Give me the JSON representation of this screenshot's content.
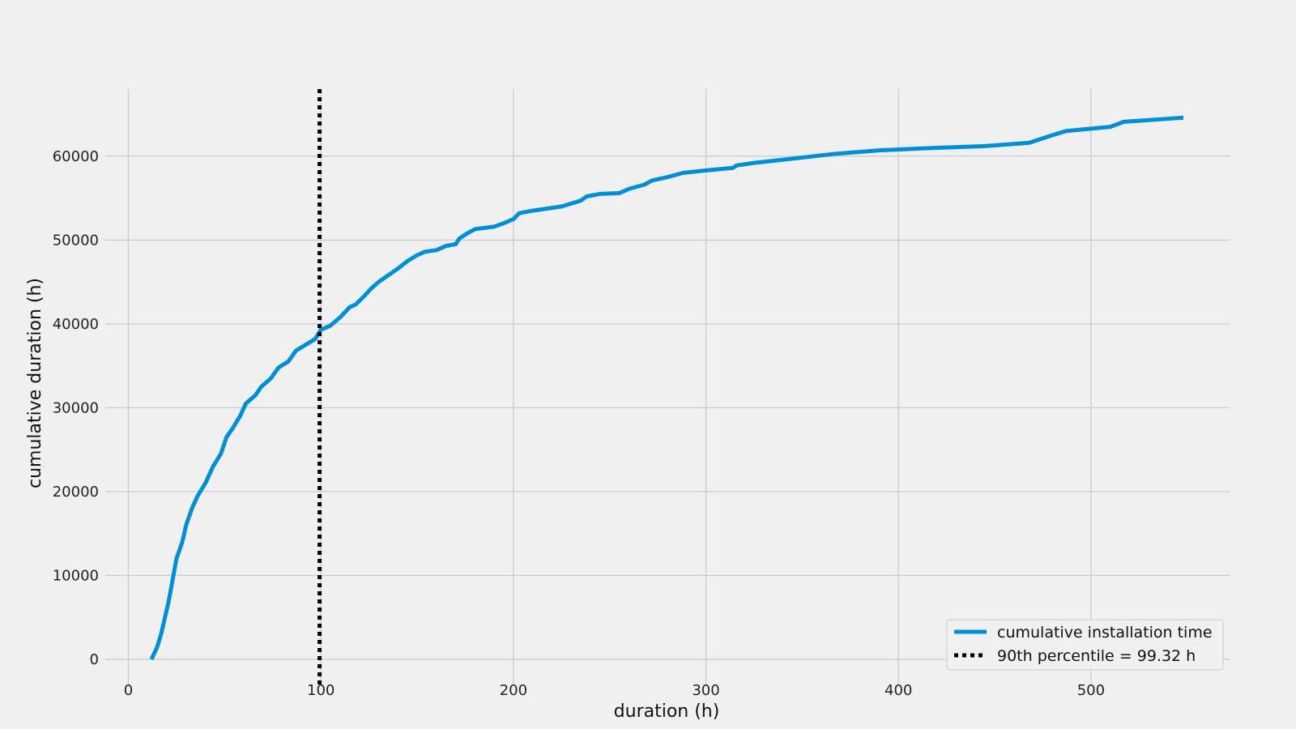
{
  "chart_data": {
    "type": "line",
    "title": "",
    "xlabel": "duration (h)",
    "ylabel": "cumulative duration (h)",
    "xlim": [
      -12,
      572
    ],
    "ylim": [
      -3000,
      68000
    ],
    "x_ticks": [
      0,
      100,
      200,
      300,
      400,
      500
    ],
    "y_ticks": [
      0,
      10000,
      20000,
      30000,
      40000,
      50000,
      60000
    ],
    "x_tick_labels": [
      "0",
      "100",
      "200",
      "300",
      "400",
      "500"
    ],
    "y_tick_labels": [
      "0",
      "10000",
      "20000",
      "30000",
      "40000",
      "50000",
      "60000"
    ],
    "grid": true,
    "legend_position": "lower-right",
    "series": [
      {
        "name": "cumulative installation time",
        "color": "#008fd5",
        "style": "solid",
        "points": [
          [
            12,
            0
          ],
          [
            15,
            1500
          ],
          [
            17,
            3000
          ],
          [
            19,
            5000
          ],
          [
            21,
            7000
          ],
          [
            23,
            9500
          ],
          [
            25,
            12000
          ],
          [
            28,
            14000
          ],
          [
            30,
            16000
          ],
          [
            33,
            18000
          ],
          [
            36,
            19500
          ],
          [
            40,
            21000
          ],
          [
            44,
            23000
          ],
          [
            48,
            24500
          ],
          [
            51,
            26500
          ],
          [
            54,
            27500
          ],
          [
            58,
            29000
          ],
          [
            61,
            30500
          ],
          [
            66,
            31500
          ],
          [
            69,
            32500
          ],
          [
            74,
            33500
          ],
          [
            78,
            34800
          ],
          [
            83,
            35500
          ],
          [
            87,
            36800
          ],
          [
            92,
            37500
          ],
          [
            97,
            38200
          ],
          [
            100,
            39300
          ],
          [
            105,
            39800
          ],
          [
            110,
            40800
          ],
          [
            115,
            42000
          ],
          [
            118,
            42300
          ],
          [
            122,
            43200
          ],
          [
            126,
            44200
          ],
          [
            130,
            45000
          ],
          [
            135,
            45800
          ],
          [
            140,
            46600
          ],
          [
            145,
            47500
          ],
          [
            150,
            48200
          ],
          [
            154,
            48600
          ],
          [
            160,
            48800
          ],
          [
            165,
            49300
          ],
          [
            170,
            49500
          ],
          [
            172,
            50200
          ],
          [
            176,
            50800
          ],
          [
            180,
            51300
          ],
          [
            190,
            51600
          ],
          [
            195,
            52000
          ],
          [
            200,
            52500
          ],
          [
            203,
            53200
          ],
          [
            210,
            53500
          ],
          [
            225,
            54000
          ],
          [
            235,
            54700
          ],
          [
            238,
            55200
          ],
          [
            245,
            55500
          ],
          [
            255,
            55600
          ],
          [
            260,
            56100
          ],
          [
            268,
            56600
          ],
          [
            272,
            57100
          ],
          [
            280,
            57500
          ],
          [
            288,
            58000
          ],
          [
            300,
            58300
          ],
          [
            314,
            58600
          ],
          [
            316,
            58900
          ],
          [
            325,
            59200
          ],
          [
            345,
            59700
          ],
          [
            368,
            60300
          ],
          [
            390,
            60700
          ],
          [
            420,
            61000
          ],
          [
            445,
            61200
          ],
          [
            468,
            61600
          ],
          [
            480,
            62500
          ],
          [
            487,
            63000
          ],
          [
            510,
            63500
          ],
          [
            517,
            64100
          ],
          [
            548,
            64600
          ]
        ]
      },
      {
        "name": "90th percentile = 99.32 h",
        "color": "#000000",
        "style": "dotted",
        "vertical_x": 99.32
      }
    ]
  }
}
